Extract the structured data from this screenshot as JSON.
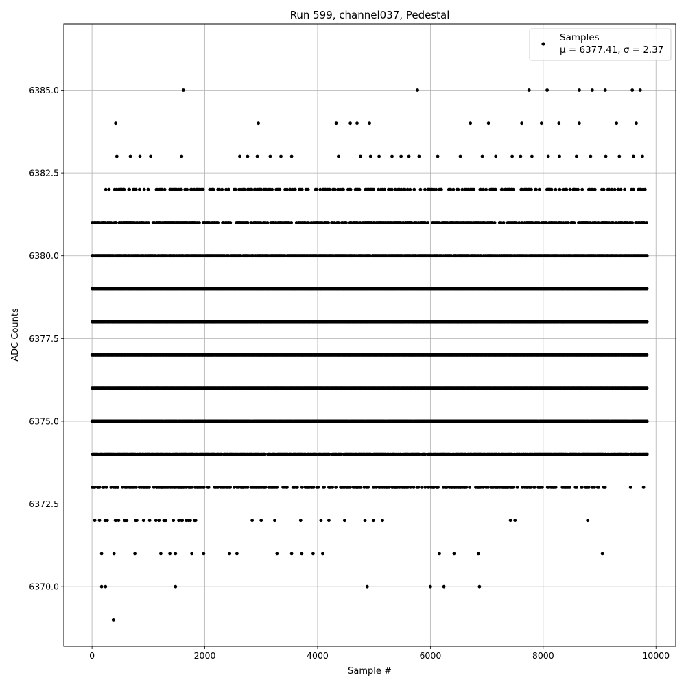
{
  "chart_data": {
    "type": "scatter",
    "title": "Run 599, channel037, Pedestal",
    "xlabel": "Sample #",
    "ylabel": "ADC Counts",
    "xlim": [
      -500,
      10350
    ],
    "ylim": [
      6368.2,
      6387.0
    ],
    "xticks": [
      0,
      2000,
      4000,
      6000,
      8000,
      10000
    ],
    "xtick_labels": [
      "0",
      "2000",
      "4000",
      "6000",
      "8000",
      "10000"
    ],
    "yticks": [
      6370.0,
      6372.5,
      6375.0,
      6377.5,
      6380.0,
      6382.5,
      6385.0
    ],
    "ytick_labels": [
      "6370.0",
      "6372.5",
      "6375.0",
      "6377.5",
      "6380.0",
      "6382.5",
      "6385.0"
    ],
    "grid": true,
    "legend": {
      "placement": "top-right",
      "series_label": "Samples",
      "stats_label": "μ = 6377.41, σ = 2.37"
    },
    "series": [
      {
        "name": "Samples",
        "color": "#000000",
        "points": [
          [
            1620,
            6385
          ],
          [
            5770,
            6385
          ],
          [
            7750,
            6385
          ],
          [
            8070,
            6385
          ],
          [
            8640,
            6385
          ],
          [
            8870,
            6385
          ],
          [
            9100,
            6385
          ],
          [
            9580,
            6385
          ],
          [
            9720,
            6385
          ],
          [
            420,
            6384
          ],
          [
            2950,
            6384
          ],
          [
            4330,
            6384
          ],
          [
            4580,
            6384
          ],
          [
            4700,
            6384
          ],
          [
            4920,
            6384
          ],
          [
            6710,
            6384
          ],
          [
            7030,
            6384
          ],
          [
            7620,
            6384
          ],
          [
            7970,
            6384
          ],
          [
            8280,
            6384
          ],
          [
            8640,
            6384
          ],
          [
            9300,
            6384
          ],
          [
            9650,
            6384
          ],
          [
            440,
            6383
          ],
          [
            680,
            6383
          ],
          [
            850,
            6383
          ],
          [
            1040,
            6383
          ],
          [
            1590,
            6383
          ],
          [
            2620,
            6383
          ],
          [
            2760,
            6383
          ],
          [
            2930,
            6383
          ],
          [
            3160,
            6383
          ],
          [
            3350,
            6383
          ],
          [
            3540,
            6383
          ],
          [
            4370,
            6383
          ],
          [
            4760,
            6383
          ],
          [
            4940,
            6383
          ],
          [
            5090,
            6383
          ],
          [
            5320,
            6383
          ],
          [
            5480,
            6383
          ],
          [
            5620,
            6383
          ],
          [
            5800,
            6383
          ],
          [
            6130,
            6383
          ],
          [
            6530,
            6383
          ],
          [
            6920,
            6383
          ],
          [
            7160,
            6383
          ],
          [
            7450,
            6383
          ],
          [
            7600,
            6383
          ],
          [
            7800,
            6383
          ],
          [
            8090,
            6383
          ],
          [
            8290,
            6383
          ],
          [
            8590,
            6383
          ],
          [
            8840,
            6383
          ],
          [
            9110,
            6383
          ],
          [
            9350,
            6383
          ],
          [
            9600,
            6383
          ],
          [
            9760,
            6383
          ],
          [
            6,
            6380
          ],
          [
            380,
            6369
          ],
          [
            170,
            6370
          ],
          [
            240,
            6370
          ],
          [
            1480,
            6370
          ],
          [
            4880,
            6370
          ],
          [
            6000,
            6370
          ],
          [
            6240,
            6370
          ],
          [
            6870,
            6370
          ],
          [
            170,
            6371
          ],
          [
            390,
            6371
          ],
          [
            760,
            6371
          ],
          [
            1220,
            6371
          ],
          [
            1380,
            6371
          ],
          [
            1480,
            6371
          ],
          [
            1770,
            6371
          ],
          [
            1980,
            6371
          ],
          [
            2440,
            6371
          ],
          [
            2570,
            6371
          ],
          [
            3280,
            6371
          ],
          [
            3540,
            6371
          ],
          [
            3720,
            6371
          ],
          [
            3920,
            6371
          ],
          [
            4090,
            6371
          ],
          [
            6160,
            6371
          ],
          [
            6420,
            6371
          ],
          [
            6850,
            6371
          ],
          [
            9050,
            6371
          ],
          [
            2840,
            6372
          ],
          [
            3000,
            6372
          ],
          [
            3240,
            6372
          ],
          [
            3700,
            6372
          ],
          [
            4060,
            6372
          ],
          [
            4200,
            6372
          ],
          [
            4480,
            6372
          ],
          [
            4840,
            6372
          ],
          [
            4990,
            6372
          ],
          [
            5150,
            6372
          ],
          [
            7420,
            6372
          ],
          [
            7500,
            6372
          ],
          [
            8790,
            6372
          ],
          [
            3230,
            6373
          ],
          [
            7450,
            6373
          ],
          [
            7780,
            6373
          ],
          [
            8100,
            6373
          ],
          [
            8350,
            6373
          ],
          [
            8470,
            6373
          ],
          [
            9550,
            6373
          ],
          [
            9780,
            6373
          ]
        ],
        "bands": [
          {
            "y": 6382,
            "density": 0.32,
            "xmin": 180,
            "xmax": 9820
          },
          {
            "y": 6381,
            "density": 0.55,
            "xmin": 0,
            "xmax": 9840
          },
          {
            "y": 6380,
            "density": 0.85,
            "xmin": 0,
            "xmax": 9840
          },
          {
            "y": 6379,
            "density": 1.0,
            "xmin": 0,
            "xmax": 9840
          },
          {
            "y": 6378,
            "density": 1.0,
            "xmin": 0,
            "xmax": 9840
          },
          {
            "y": 6377,
            "density": 1.0,
            "xmin": 0,
            "xmax": 9840
          },
          {
            "y": 6376,
            "density": 1.0,
            "xmin": 0,
            "xmax": 9840
          },
          {
            "y": 6375,
            "density": 0.95,
            "xmin": 0,
            "xmax": 9840
          },
          {
            "y": 6374,
            "density": 0.75,
            "xmin": 0,
            "xmax": 9840
          },
          {
            "y": 6373,
            "density": 0.38,
            "xmin": 0,
            "xmax": 9100
          },
          {
            "y": 6372,
            "density": 0.18,
            "xmin": 0,
            "xmax": 2000
          }
        ]
      }
    ]
  }
}
